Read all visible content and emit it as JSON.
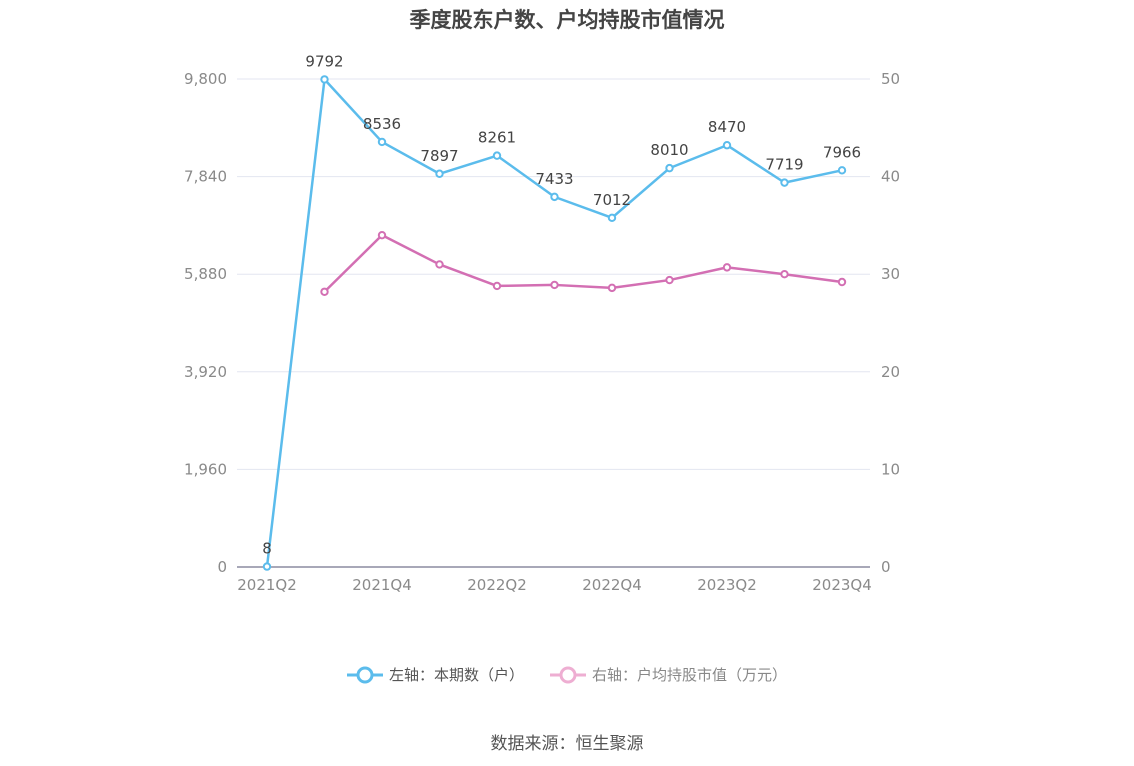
{
  "chart_data": {
    "type": "line",
    "title": "季度股东户数、户均持股市值情况",
    "categories": [
      "2021Q2",
      "2021Q3",
      "2021Q4",
      "2022Q1",
      "2022Q2",
      "2022Q3",
      "2022Q4",
      "2023Q1",
      "2023Q2",
      "2023Q3",
      "2023Q4"
    ],
    "x_tick_labels": [
      "2021Q2",
      "2021Q4",
      "2022Q2",
      "2022Q4",
      "2023Q2",
      "2023Q4"
    ],
    "y_left": {
      "ylim": [
        0,
        9800
      ],
      "ticks": [
        "0",
        "1,960",
        "3,920",
        "5,880",
        "7,840",
        "9,800"
      ]
    },
    "y_right": {
      "ylim": [
        0,
        50
      ],
      "ticks": [
        "0",
        "10",
        "20",
        "30",
        "40",
        "50"
      ]
    },
    "grid": true,
    "legend_position": "bottom-center",
    "series": [
      {
        "name": "左轴：本期数（户）",
        "axis": "left",
        "color": "#5bbcec",
        "values": [
          8,
          9792,
          8536,
          7897,
          8261,
          7433,
          7012,
          8010,
          8470,
          7719,
          7966
        ],
        "labels": [
          "8",
          "9792",
          "8536",
          "7897",
          "8261",
          "7433",
          "7012",
          "8010",
          "8470",
          "7719",
          "7966"
        ]
      },
      {
        "name": "右轴：户均持股市值（万元）",
        "axis": "right",
        "color": "#d36fb3",
        "legend_color": "#eeaed2",
        "values": [
          null,
          28.2,
          34.0,
          31.0,
          28.8,
          28.9,
          28.6,
          29.4,
          30.7,
          30.0,
          29.2
        ]
      }
    ]
  },
  "source": "数据来源：恒生聚源"
}
